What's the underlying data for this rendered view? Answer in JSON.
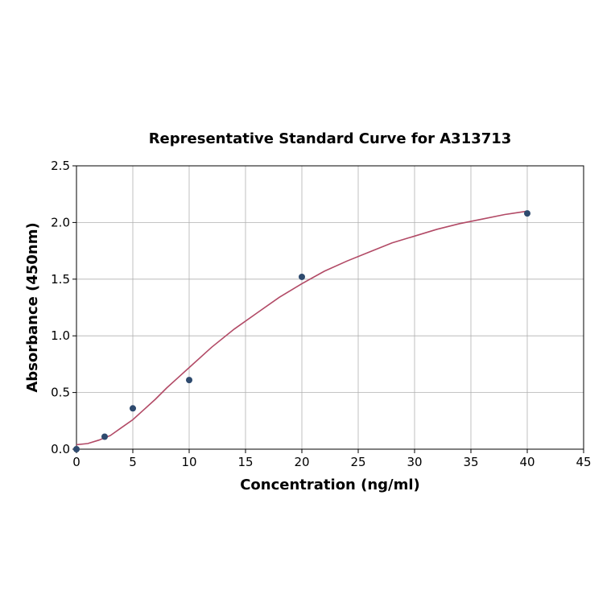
{
  "chart_data": {
    "type": "scatter",
    "title": "Representative Standard Curve for A313713",
    "xlabel": "Concentration (ng/ml)",
    "ylabel": "Absorbance (450nm)",
    "xlim": [
      0,
      45
    ],
    "ylim": [
      0,
      2.5
    ],
    "xticks": [
      "0",
      "5",
      "10",
      "15",
      "20",
      "25",
      "30",
      "35",
      "40",
      "45"
    ],
    "yticks": [
      "0.0",
      "0.5",
      "1.0",
      "1.5",
      "2.0",
      "2.5"
    ],
    "grid": true,
    "points": {
      "x": [
        0,
        2.5,
        5,
        10,
        20,
        40
      ],
      "y": [
        0.0,
        0.11,
        0.36,
        0.61,
        1.52,
        2.08
      ]
    },
    "fit_curve": {
      "x": [
        0,
        1,
        2,
        3,
        4,
        5,
        6,
        7,
        8,
        9,
        10,
        12,
        14,
        16,
        18,
        20,
        22,
        24,
        26,
        28,
        30,
        32,
        34,
        36,
        38,
        40
      ],
      "y": [
        0.04,
        0.05,
        0.08,
        0.12,
        0.19,
        0.26,
        0.35,
        0.44,
        0.54,
        0.63,
        0.72,
        0.9,
        1.06,
        1.2,
        1.34,
        1.46,
        1.57,
        1.66,
        1.74,
        1.82,
        1.88,
        1.94,
        1.99,
        2.03,
        2.07,
        2.1
      ]
    },
    "colors": {
      "points": "#2e4a6e",
      "curve": "#b24a66",
      "grid": "#b0b0b0"
    }
  }
}
